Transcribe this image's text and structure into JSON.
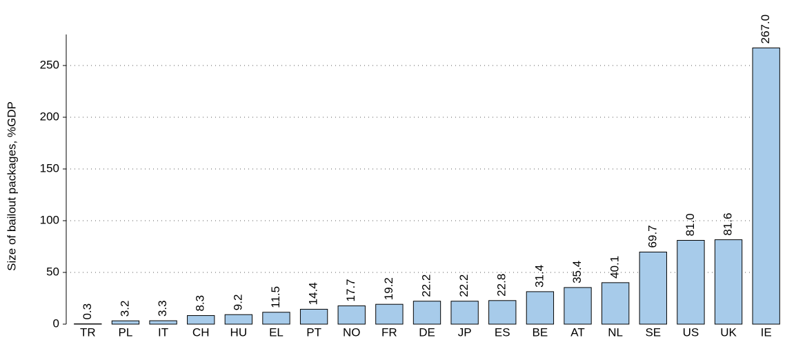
{
  "chart_data": {
    "type": "bar",
    "y_label": "Size of bailout packages, %GDP",
    "categories": [
      "TR",
      "PL",
      "IT",
      "CH",
      "HU",
      "EL",
      "PT",
      "NO",
      "FR",
      "DE",
      "JP",
      "ES",
      "BE",
      "AT",
      "NL",
      "SE",
      "US",
      "UK",
      "IE"
    ],
    "values": [
      0.3,
      3.2,
      3.3,
      8.3,
      9.2,
      11.5,
      14.4,
      17.7,
      19.2,
      22.2,
      22.2,
      22.8,
      31.4,
      35.4,
      40.1,
      69.7,
      81,
      81.6,
      267
    ],
    "value_labels": [
      "0.3",
      "3.2",
      "3.3",
      "8.3",
      "9.2",
      "11.5",
      "14.4",
      "17.7",
      "19.2",
      "22.2",
      "22.2",
      "22.8",
      "31.4",
      "35.4",
      "40.1",
      "69.7",
      "81.0",
      "81.6",
      "267.0"
    ],
    "color": "#a7cbea",
    "ylim": [
      0,
      280
    ],
    "yticks": [
      0,
      50,
      100,
      150,
      200,
      250
    ],
    "grid": true
  }
}
